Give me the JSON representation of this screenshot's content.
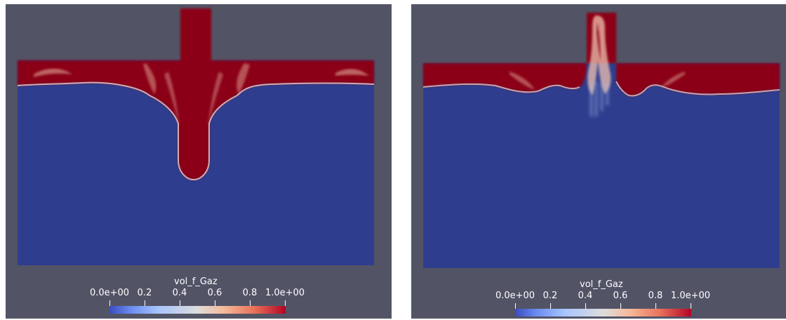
{
  "panels": [
    {
      "colorbar": {
        "title": "vol_f_Gaz",
        "tick_labels": [
          "0.0e+00",
          "0.2",
          "0.4",
          "0.6",
          "0.8",
          "1.0e+00"
        ],
        "range": [
          0,
          1
        ]
      }
    },
    {
      "colorbar": {
        "title": "vol_f_Gaz",
        "tick_labels": [
          "0.0e+00",
          "0.2",
          "0.4",
          "0.6",
          "0.8",
          "1.0e+00"
        ],
        "range": [
          0,
          1
        ]
      }
    }
  ],
  "colors": {
    "background": "#525466",
    "liquid": "#2f3d8f",
    "gas": "#8b0016",
    "colormap": [
      "#3b4cc0",
      "#a8c5fd",
      "#dddcdc",
      "#f5b99a",
      "#b40426"
    ]
  }
}
